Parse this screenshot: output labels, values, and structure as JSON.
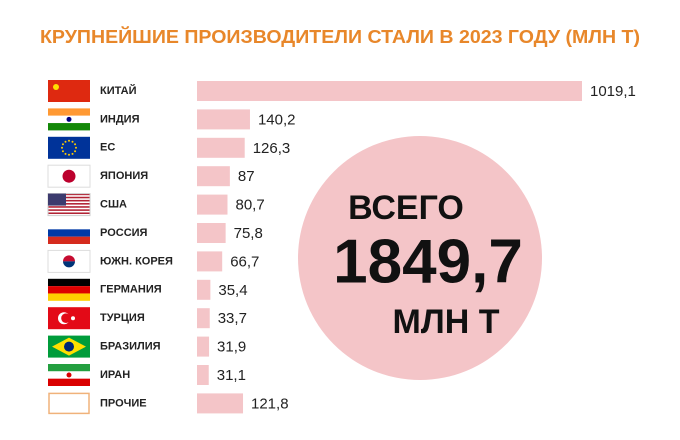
{
  "chart_data": {
    "type": "bar",
    "orientation": "horizontal",
    "title": "КРУПНЕЙШИЕ ПРОИЗВОДИТЕЛИ СТАЛИ В 2023 ГОДУ (МЛН Т)",
    "categories": [
      "КИТАЙ",
      "ИНДИЯ",
      "ЕС",
      "ЯПОНИЯ",
      "США",
      "РОССИЯ",
      "ЮЖН. КОРЕЯ",
      "ГЕРМАНИЯ",
      "ТУРЦИЯ",
      "БРАЗИЛИЯ",
      "ИРАН",
      "ПРОЧИЕ"
    ],
    "values": [
      1019.1,
      140.2,
      126.3,
      87,
      80.7,
      75.8,
      66.7,
      35.4,
      33.7,
      31.9,
      31.1,
      121.8
    ],
    "value_labels": [
      "1019,1",
      "140,2",
      "126,3",
      "87",
      "80,7",
      "75,8",
      "66,7",
      "35,4",
      "33,7",
      "31,9",
      "31,1",
      "121,8"
    ],
    "color": "#f4c5c8",
    "annotations": {
      "total_label": "ВСЕГО",
      "total_value": 1849.7,
      "total_value_label": "1849,7",
      "total_unit": "МЛН Т"
    }
  }
}
